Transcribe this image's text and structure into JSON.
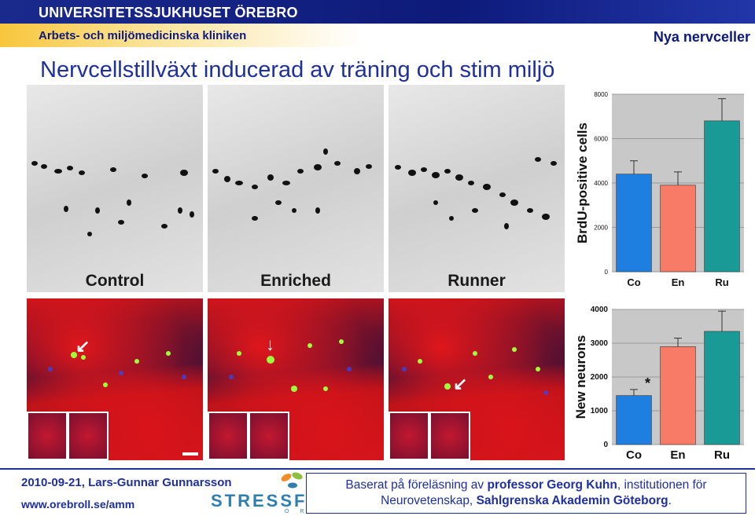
{
  "header": {
    "university": "UNIVERSITETSSJUKHUSET ÖREBRO",
    "clinic": "Arbets- och miljömedicinska kliniken",
    "slide_tag": "Nya nervceller"
  },
  "title": "Nervcellstillväxt inducerad av träning och stim miljö",
  "micrographs": {
    "labels": [
      "Control",
      "Enriched",
      "Runner"
    ]
  },
  "chart_data": [
    {
      "type": "bar",
      "categories": [
        "Co",
        "En",
        "Ru"
      ],
      "values": [
        4400,
        3900,
        6800
      ],
      "errors": [
        600,
        600,
        1000
      ],
      "ylabel": "BrdU-positive cells",
      "ylim": [
        0,
        8000
      ],
      "yticks": [
        "0",
        "2000",
        "4000",
        "6000",
        "8000"
      ],
      "colors": [
        "#1f7fe0",
        "#f77b66",
        "#1a9a96"
      ],
      "grid": true
    },
    {
      "type": "bar",
      "categories": [
        "Co",
        "En",
        "Ru"
      ],
      "values": [
        1450,
        2900,
        3350
      ],
      "errors": [
        180,
        250,
        600
      ],
      "ylabel": "New neurons",
      "ylim": [
        0,
        4000
      ],
      "yticks": [
        "0",
        "1000",
        "2000",
        "3000",
        "4000"
      ],
      "annotation": "*",
      "colors": [
        "#1f7fe0",
        "#f77b66",
        "#1a9a96"
      ],
      "grid": true
    }
  ],
  "footer": {
    "date_author": "2010-09-21, Lars-Gunnar Gunnarsson",
    "url": "www.orebroll.se/amm",
    "logo_text": "STRESSFOR",
    "logo_sub": "Ö R E",
    "source_line1_pre": "Baserat på föreläsning av ",
    "source_line1_bold": "professor Georg Kuhn",
    "source_line1_post": ", institutionen för",
    "source_line2_pre": "Neurovetenskap, ",
    "source_line2_bold": "Sahlgrenska Akademin Göteborg",
    "source_line2_post": "."
  }
}
